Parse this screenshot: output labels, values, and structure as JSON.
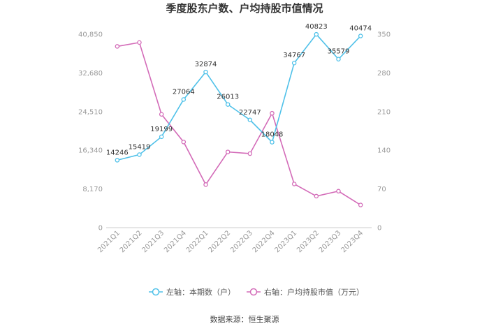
{
  "chart_data": {
    "type": "line",
    "title": "季度股东户数、户均持股市值情况",
    "categories": [
      "2021Q1",
      "2021Q2",
      "2021Q3",
      "2021Q4",
      "2022Q1",
      "2022Q2",
      "2022Q3",
      "2022Q4",
      "2023Q1",
      "2023Q2",
      "2023Q3",
      "2023Q4"
    ],
    "y_left": {
      "ticks": [
        0,
        8170,
        16340,
        24510,
        32680,
        40850
      ],
      "tick_labels": [
        "0",
        "8,170",
        "16,340",
        "24,510",
        "32,680",
        "40,850"
      ],
      "ylim": [
        0,
        40850
      ]
    },
    "y_right": {
      "ticks": [
        0,
        70,
        140,
        210,
        280,
        350
      ],
      "tick_labels": [
        "0",
        "70",
        "140",
        "210",
        "280",
        "350"
      ],
      "ylim": [
        0,
        350
      ]
    },
    "series": [
      {
        "name": "左轴：本期数（户）",
        "axis": "left",
        "color": "#4fc1e9",
        "values": [
          14246,
          15419,
          19199,
          27064,
          32874,
          26013,
          22747,
          18048,
          34767,
          40823,
          35579,
          40474
        ],
        "labels": [
          "14246",
          "15419",
          "19199",
          "27064",
          "32874",
          "26013",
          "22747",
          "18048",
          "34767",
          "40823",
          "35579",
          "40474"
        ]
      },
      {
        "name": "右轴：户均持股市值（万元）",
        "axis": "right",
        "color": "#d36bb8",
        "values": [
          328,
          335,
          205,
          155,
          78,
          137,
          134,
          207,
          79,
          57,
          66,
          41
        ]
      }
    ],
    "grid": false,
    "legend_position": "bottom"
  },
  "source": "数据来源：恒生聚源"
}
